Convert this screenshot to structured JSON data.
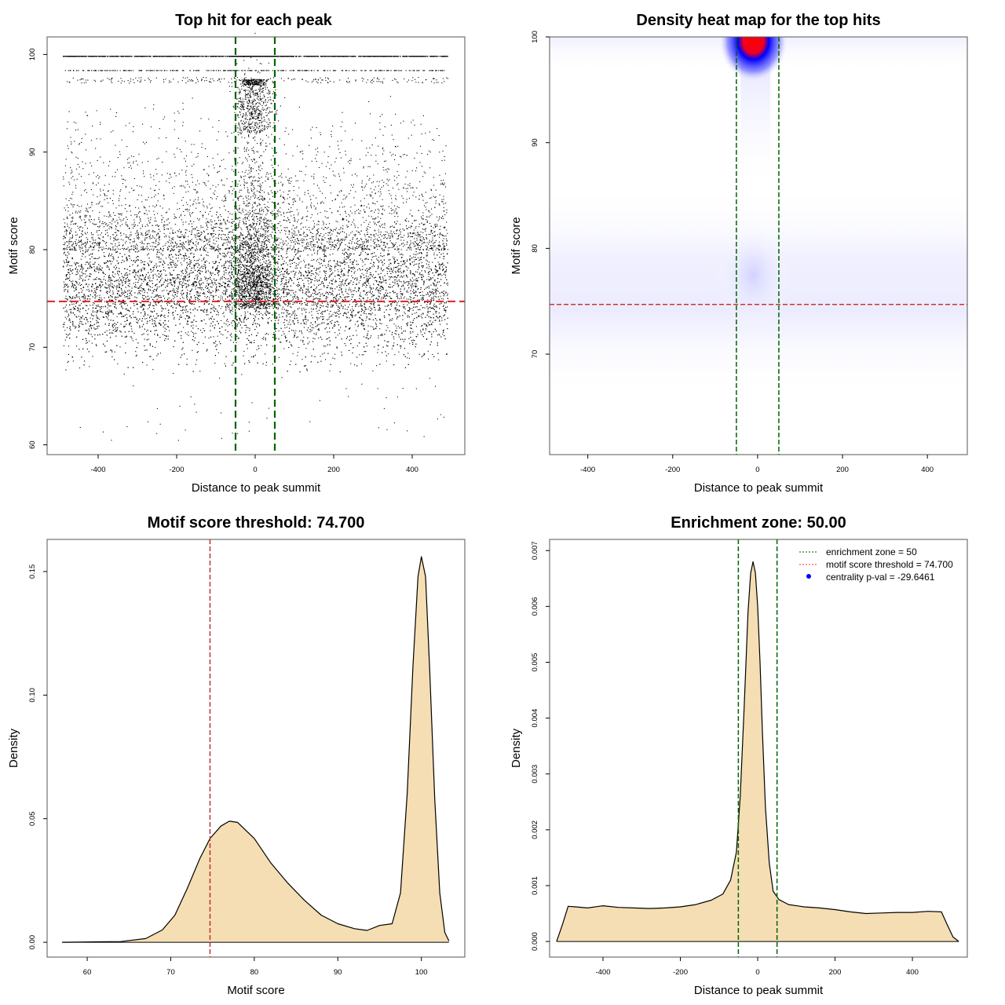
{
  "chart_data": [
    {
      "type": "scatter",
      "title": "Top hit for each peak",
      "xlabel": "Distance to peak summit",
      "ylabel": "Motif score",
      "xlim": [
        -530,
        534
      ],
      "ylim": [
        59,
        101.8
      ],
      "xticks": [
        "-400",
        "-200",
        "0",
        "200",
        "400"
      ],
      "xtick_values": [
        -400,
        -200,
        0,
        200,
        400
      ],
      "yticks": [
        "60",
        "70",
        "80",
        "90",
        "100"
      ],
      "ytick_values": [
        60,
        70,
        80,
        90,
        100
      ],
      "vlines": [
        -50,
        50
      ],
      "hline": 74.7,
      "vline_color": "#006400",
      "hline_color": "#dd2222",
      "point_color": "#000000",
      "grid": false
    },
    {
      "type": "heatmap",
      "title": "Density heat map for the top hits",
      "xlabel": "Distance to peak summit",
      "ylabel": "Motif score",
      "xlim": [
        -490,
        494
      ],
      "ylim": [
        60.5,
        100
      ],
      "xticks": [
        "-400",
        "-200",
        "0",
        "200",
        "400"
      ],
      "xtick_values": [
        -400,
        -200,
        0,
        200,
        400
      ],
      "yticks": [
        "70",
        "80",
        "90",
        "100"
      ],
      "ytick_values": [
        70,
        80,
        90,
        100
      ],
      "vlines": [
        -50,
        50
      ],
      "hline": 74.7,
      "colors": [
        "#ffffff",
        "#0000ff",
        "#ff0000"
      ],
      "grid": false
    },
    {
      "type": "area",
      "title": "Motif score threshold: 74.700",
      "xlabel": "Motif score",
      "ylabel": "Density",
      "xlim": [
        55.2,
        105.2
      ],
      "ylim": [
        -0.006,
        0.163
      ],
      "xticks": [
        "60",
        "70",
        "80",
        "90",
        "100"
      ],
      "xtick_values": [
        60,
        70,
        80,
        90,
        100
      ],
      "yticks": [
        "0.00",
        "0.05",
        "0.10",
        "0.15"
      ],
      "ytick_values": [
        0,
        0.05,
        0.1,
        0.15
      ],
      "x": [
        57,
        64,
        67,
        69,
        70.5,
        72,
        73.5,
        74.7,
        76,
        77,
        78,
        80,
        82,
        84,
        86,
        88,
        90,
        92,
        93.5,
        95,
        96.5,
        97.5,
        98.3,
        99,
        99.6,
        100,
        100.5,
        101,
        101.6,
        102.2,
        102.8,
        103.3
      ],
      "y": [
        0,
        0.0003,
        0.0015,
        0.005,
        0.011,
        0.022,
        0.034,
        0.042,
        0.047,
        0.049,
        0.0485,
        0.042,
        0.032,
        0.024,
        0.017,
        0.011,
        0.0075,
        0.0055,
        0.0048,
        0.0068,
        0.0075,
        0.02,
        0.06,
        0.112,
        0.148,
        0.156,
        0.148,
        0.11,
        0.058,
        0.02,
        0.004,
        0.0005
      ],
      "vline": 74.7,
      "vline_color": "#bb3333",
      "fill_color": "#f5deb3",
      "grid": false
    },
    {
      "type": "area",
      "title": "Enrichment zone: 50.00",
      "xlabel": "Distance to peak summit",
      "ylabel": "Density",
      "xlim": [
        -538,
        542
      ],
      "ylim": [
        -0.00028,
        0.0072
      ],
      "xticks": [
        "-400",
        "-200",
        "0",
        "200",
        "400"
      ],
      "xtick_values": [
        -400,
        -200,
        0,
        200,
        400
      ],
      "yticks": [
        "0.000",
        "0.001",
        "0.002",
        "0.003",
        "0.004",
        "0.005",
        "0.006",
        "0.007"
      ],
      "ytick_values": [
        0,
        0.001,
        0.002,
        0.003,
        0.004,
        0.005,
        0.006,
        0.007
      ],
      "x": [
        -520,
        -505,
        -490,
        -470,
        -440,
        -400,
        -360,
        -320,
        -280,
        -240,
        -200,
        -160,
        -120,
        -90,
        -70,
        -55,
        -45,
        -35,
        -25,
        -18,
        -12,
        -6,
        0,
        6,
        12,
        20,
        30,
        40,
        55,
        80,
        120,
        160,
        200,
        240,
        280,
        320,
        360,
        400,
        440,
        475,
        490,
        505,
        520
      ],
      "y": [
        0,
        0.0003,
        0.00063,
        0.00062,
        0.0006,
        0.00064,
        0.00061,
        0.0006,
        0.00059,
        0.0006,
        0.00062,
        0.00066,
        0.00074,
        0.00085,
        0.0011,
        0.0016,
        0.0026,
        0.0042,
        0.0059,
        0.0066,
        0.0068,
        0.0066,
        0.006,
        0.005,
        0.0038,
        0.0024,
        0.0014,
        0.0009,
        0.00075,
        0.00066,
        0.00062,
        0.0006,
        0.00057,
        0.00053,
        0.0005,
        0.00051,
        0.00052,
        0.00052,
        0.00054,
        0.00053,
        0.0003,
        8e-05,
        0
      ],
      "vlines": [
        -50,
        50
      ],
      "vline_color": "#006400",
      "fill_color": "#f5deb3",
      "legend_position": "top-right",
      "legend": [
        {
          "label": "enrichment zone = 50",
          "color": "#006400",
          "style": "dotted-line"
        },
        {
          "label": "motif score threshold = 74.700",
          "color": "#ff3333",
          "style": "dotted-line"
        },
        {
          "label": "centrality p-val = -29.6461",
          "color": "#0000ff",
          "style": "point"
        }
      ],
      "grid": false
    }
  ]
}
